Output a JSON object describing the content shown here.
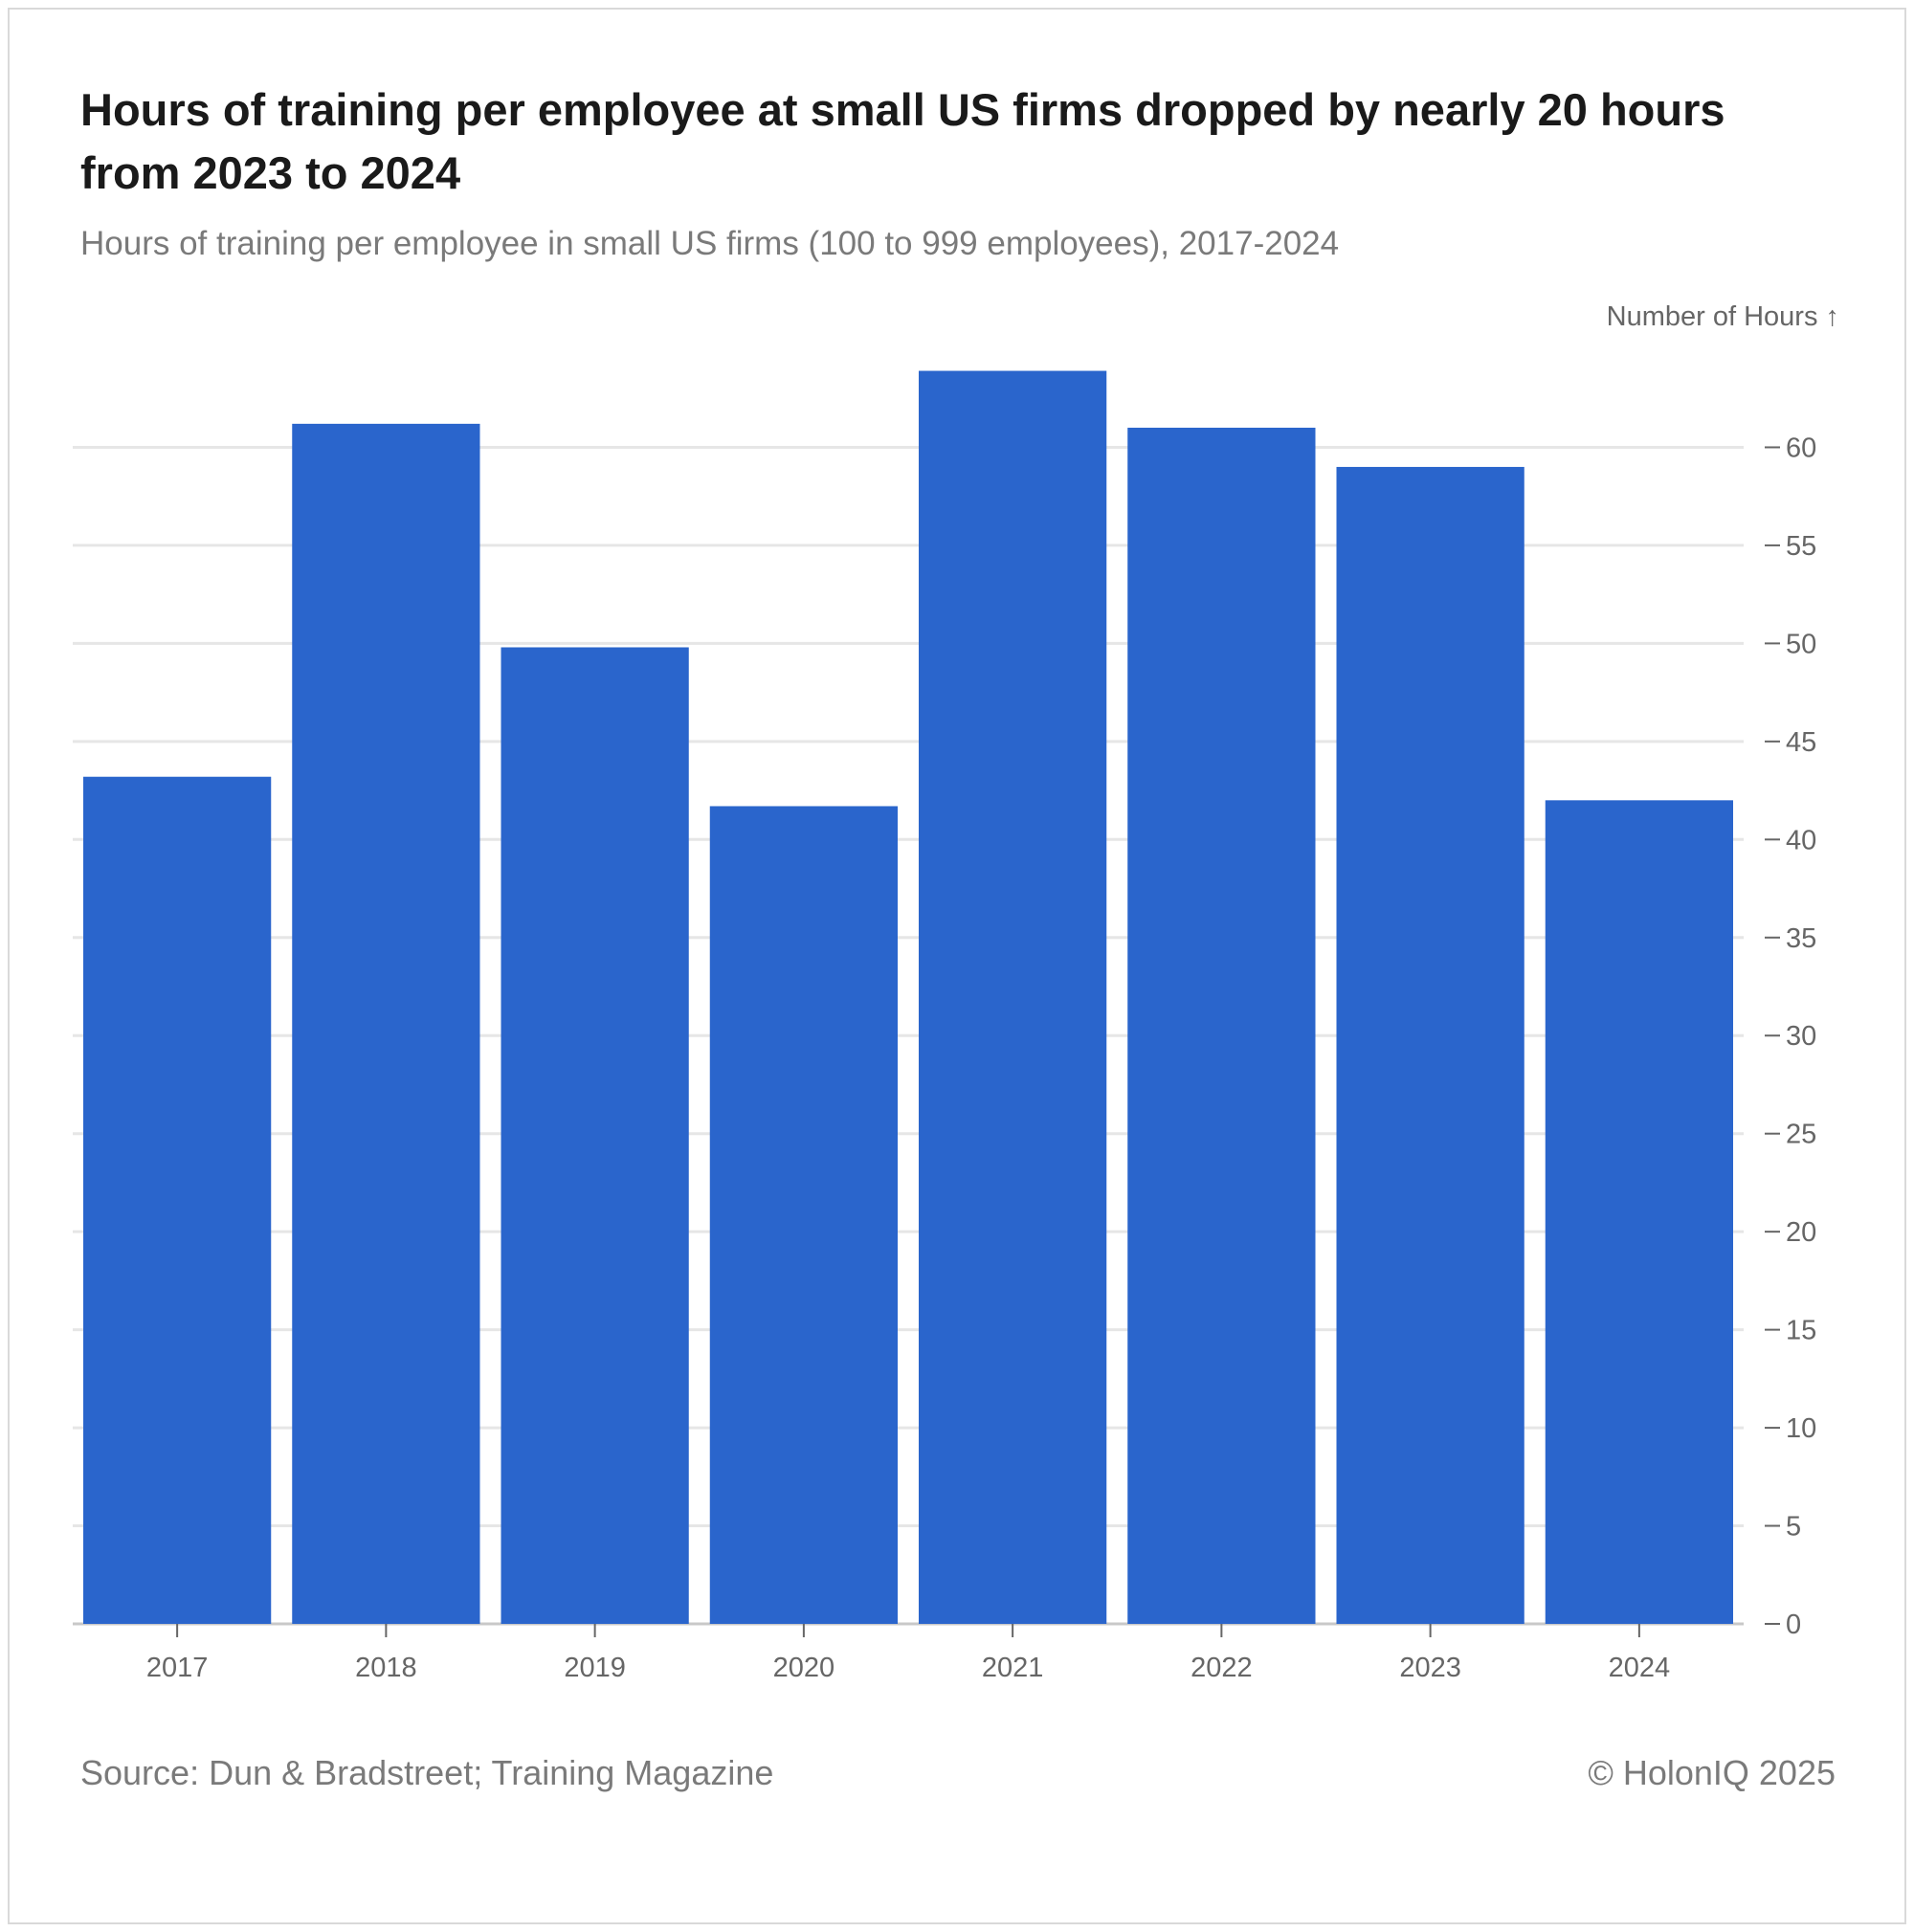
{
  "title": "Hours of training per employee at small US firms dropped by nearly 20 hours from 2023 to 2024",
  "subtitle": "Hours of training per employee in small US firms (100 to 999 employees), 2017-2024",
  "source": "Source: Dun & Bradstreet; Training Magazine",
  "credit": "© HolonIQ 2025",
  "colors": {
    "bar": "#2a65cc",
    "grid": "#e6e6e6",
    "axis": "#c8c8c8"
  },
  "chart_data": {
    "type": "bar",
    "title": "Hours of training per employee at small US firms dropped by nearly 20 hours from 2023 to 2024",
    "xlabel": "",
    "ylabel": "Number of Hours ↑",
    "categories": [
      "2017",
      "2018",
      "2019",
      "2020",
      "2021",
      "2022",
      "2023",
      "2024"
    ],
    "values": [
      43.2,
      61.2,
      49.8,
      41.7,
      63.9,
      61.0,
      59.0,
      42.0
    ],
    "ylim": [
      0,
      65
    ],
    "yticks": [
      0,
      5,
      10,
      15,
      20,
      25,
      30,
      35,
      40,
      45,
      50,
      55,
      60
    ],
    "grid": true,
    "y_axis_side": "right",
    "legend": "none"
  }
}
